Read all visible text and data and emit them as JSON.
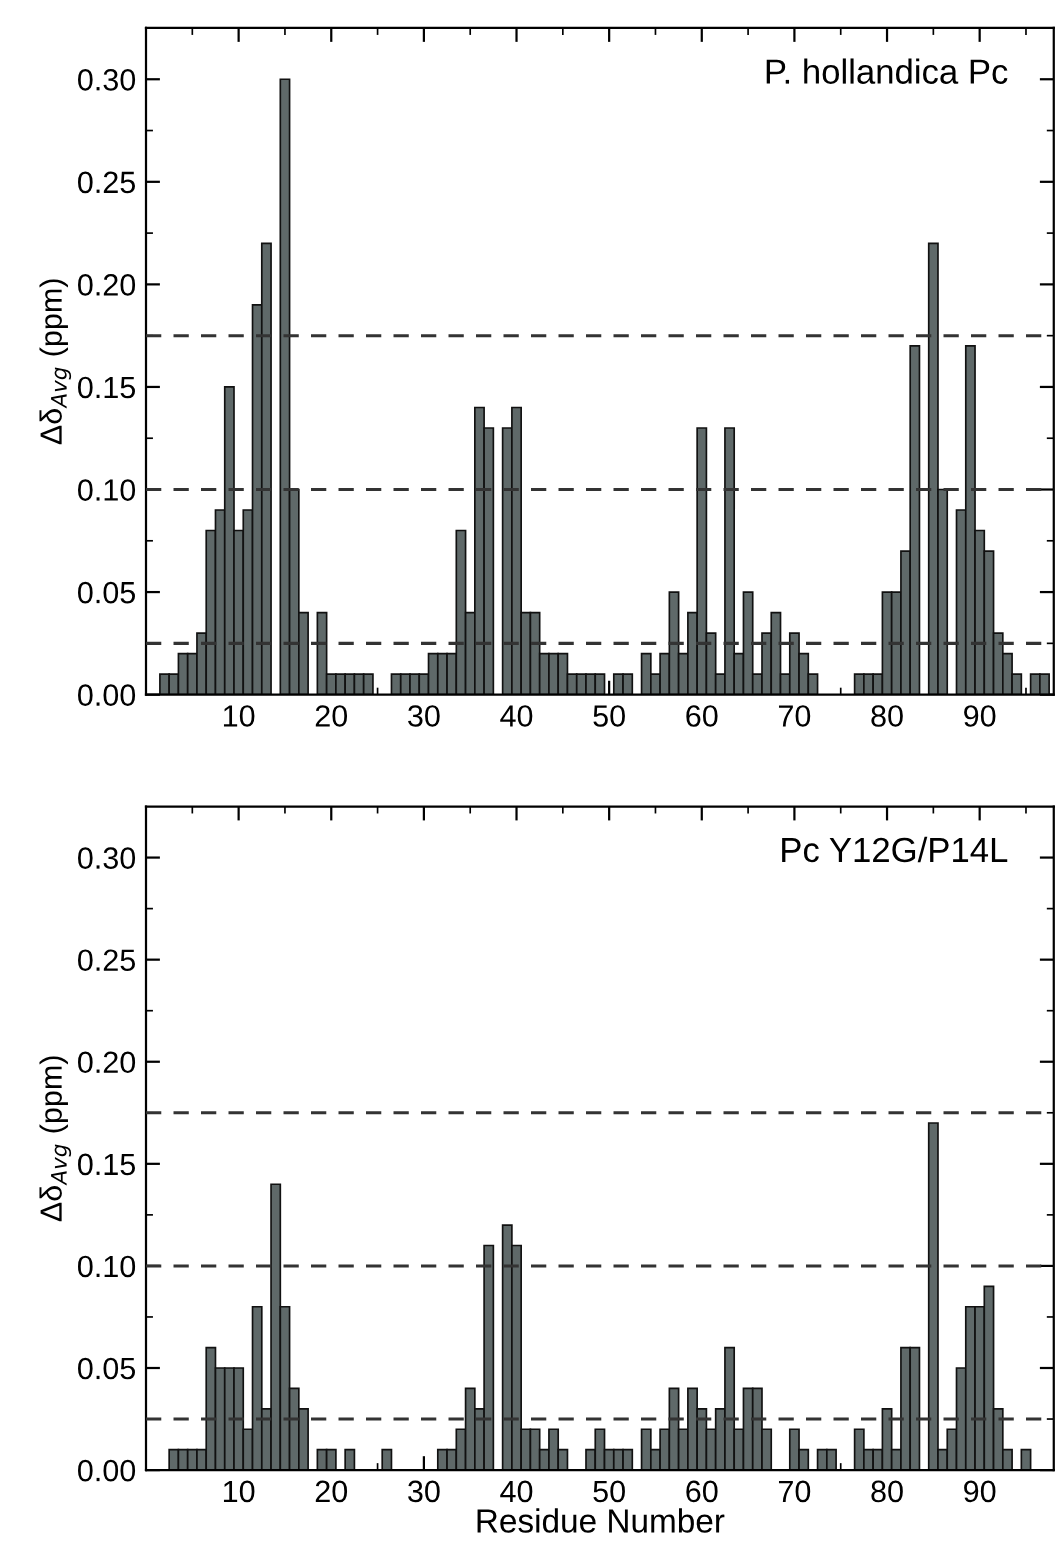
{
  "chart_data": [
    {
      "type": "bar",
      "ylabel": "Δδ$_{Avg}$ (ppm)",
      "annotations": [
        "P. hollandica Pc"
      ],
      "color": "#5f6969",
      "x": [
        2,
        3,
        4,
        5,
        6,
        7,
        8,
        9,
        10,
        11,
        12,
        13,
        14,
        15,
        16,
        17,
        18,
        19,
        20,
        21,
        22,
        23,
        24,
        25,
        26,
        27,
        28,
        29,
        30,
        31,
        32,
        33,
        34,
        35,
        36,
        37,
        38,
        39,
        40,
        41,
        42,
        43,
        44,
        45,
        46,
        47,
        48,
        49,
        50,
        51,
        52,
        53,
        54,
        55,
        56,
        57,
        58,
        59,
        60,
        61,
        62,
        63,
        64,
        65,
        66,
        67,
        68,
        69,
        70,
        71,
        72,
        73,
        74,
        75,
        76,
        77,
        78,
        79,
        80,
        81,
        82,
        83,
        84,
        85,
        86,
        87,
        88,
        89,
        90,
        91,
        92,
        93,
        94,
        95,
        96,
        97
      ],
      "values": [
        0.01,
        0.01,
        0.02,
        0.02,
        0.03,
        0.08,
        0.09,
        0.15,
        0.08,
        0.09,
        0.19,
        0.22,
        null,
        0.3,
        0.1,
        0.04,
        null,
        0.04,
        0.01,
        0.01,
        0.01,
        0.01,
        0.01,
        null,
        null,
        0.01,
        0.01,
        0.01,
        0.01,
        0.02,
        0.02,
        0.02,
        0.08,
        0.04,
        0.14,
        0.13,
        null,
        0.13,
        0.14,
        0.04,
        0.04,
        0.02,
        0.02,
        0.02,
        0.01,
        0.01,
        0.01,
        0.01,
        null,
        0.01,
        0.01,
        null,
        0.02,
        0.01,
        0.02,
        0.05,
        0.02,
        0.04,
        0.13,
        0.03,
        0.01,
        0.13,
        0.02,
        0.05,
        0.01,
        0.03,
        0.04,
        0.01,
        0.03,
        0.02,
        0.01,
        null,
        null,
        null,
        null,
        0.01,
        0.01,
        0.01,
        0.05,
        0.05,
        0.07,
        0.17,
        null,
        0.22,
        0.1,
        null,
        0.09,
        0.17,
        0.08,
        0.07,
        0.03,
        0.02,
        0.01,
        null,
        0.01,
        0.01
      ],
      "xlim": [
        0,
        98
      ],
      "xticks": [
        {
          "value": 5,
          "label": null
        },
        10,
        {
          "value": 15,
          "label": null
        },
        20,
        {
          "value": 25,
          "label": null
        },
        30,
        {
          "value": 35,
          "label": null
        },
        40,
        {
          "value": 45,
          "label": null
        },
        50,
        {
          "value": 55,
          "label": null
        },
        60,
        {
          "value": 65,
          "label": null
        },
        70,
        {
          "value": 75,
          "label": null
        },
        80,
        {
          "value": 85,
          "label": null
        },
        90,
        {
          "value": 95,
          "label": null
        }
      ],
      "ylim": [
        0,
        0.325
      ],
      "yticks": [
        {
          "value": 0,
          "label": "0.00"
        },
        {
          "value": 0.025,
          "label": null
        },
        {
          "value": 0.05,
          "label": "0.05"
        },
        {
          "value": 0.075,
          "label": null
        },
        {
          "value": 0.1,
          "label": "0.10"
        },
        {
          "value": 0.125,
          "label": null
        },
        {
          "value": 0.15,
          "label": "0.15"
        },
        {
          "value": 0.175,
          "label": null
        },
        {
          "value": 0.2,
          "label": "0.20"
        },
        {
          "value": 0.225,
          "label": null
        },
        {
          "value": 0.25,
          "label": "0.25"
        },
        {
          "value": 0.275,
          "label": null
        },
        {
          "value": 0.3,
          "label": "0.30"
        }
      ],
      "ref_lines": [
        {
          "axis": "y",
          "value": 0.025,
          "line_style": "dashed",
          "color": "#333333"
        },
        {
          "axis": "y",
          "value": 0.1,
          "line_style": "dashed",
          "color": "#333333"
        },
        {
          "axis": "y",
          "value": 0.175,
          "line_style": "dashed",
          "color": "#333333"
        }
      ],
      "grid": false,
      "legend": false
    },
    {
      "type": "bar",
      "ylabel": "Δδ$_{Avg}$ (ppm)",
      "xlabel": "Residue Number",
      "annotations": [
        "Pc Y12G/P14L"
      ],
      "color": "#5f6969",
      "x": [
        3,
        4,
        5,
        6,
        7,
        8,
        9,
        10,
        11,
        12,
        13,
        14,
        15,
        16,
        17,
        18,
        19,
        20,
        21,
        22,
        23,
        24,
        25,
        26,
        27,
        28,
        29,
        30,
        31,
        32,
        33,
        34,
        35,
        36,
        37,
        38,
        39,
        40,
        41,
        42,
        43,
        44,
        45,
        46,
        47,
        48,
        49,
        50,
        51,
        52,
        53,
        54,
        55,
        56,
        57,
        58,
        59,
        60,
        61,
        62,
        63,
        64,
        65,
        66,
        67,
        68,
        69,
        70,
        71,
        72,
        73,
        74,
        75,
        76,
        77,
        78,
        79,
        80,
        81,
        82,
        83,
        84,
        85,
        86,
        87,
        88,
        89,
        90,
        91,
        92,
        93,
        94,
        95
      ],
      "values": [
        0.01,
        0.01,
        0.01,
        0.01,
        0.06,
        0.05,
        0.05,
        0.05,
        0.02,
        0.08,
        0.03,
        0.14,
        0.08,
        0.04,
        0.03,
        null,
        0.01,
        0.01,
        null,
        0.01,
        null,
        null,
        null,
        0.01,
        null,
        null,
        null,
        null,
        null,
        0.01,
        0.01,
        0.02,
        0.04,
        0.03,
        0.11,
        null,
        0.12,
        0.11,
        0.02,
        0.02,
        0.01,
        0.02,
        0.01,
        null,
        null,
        0.01,
        0.02,
        0.01,
        0.01,
        0.01,
        null,
        0.02,
        0.01,
        0.02,
        0.04,
        0.02,
        0.04,
        0.03,
        0.02,
        0.03,
        0.06,
        0.02,
        0.04,
        0.04,
        0.02,
        null,
        null,
        0.02,
        0.01,
        null,
        0.01,
        0.01,
        null,
        null,
        0.02,
        0.01,
        0.01,
        0.03,
        0.01,
        0.06,
        0.06,
        null,
        0.17,
        0.01,
        0.02,
        0.05,
        0.08,
        0.08,
        0.09,
        0.03,
        0.01,
        null,
        0.01
      ],
      "xlim": [
        0,
        98
      ],
      "xticks": [
        {
          "value": 5,
          "label": null
        },
        10,
        {
          "value": 15,
          "label": null
        },
        20,
        {
          "value": 25,
          "label": null
        },
        30,
        {
          "value": 35,
          "label": null
        },
        40,
        {
          "value": 45,
          "label": null
        },
        50,
        {
          "value": 55,
          "label": null
        },
        60,
        {
          "value": 65,
          "label": null
        },
        70,
        {
          "value": 75,
          "label": null
        },
        80,
        {
          "value": 85,
          "label": null
        },
        90,
        {
          "value": 95,
          "label": null
        }
      ],
      "ylim": [
        0,
        0.325
      ],
      "yticks": [
        {
          "value": 0,
          "label": "0.00"
        },
        {
          "value": 0.025,
          "label": null
        },
        {
          "value": 0.05,
          "label": "0.05"
        },
        {
          "value": 0.075,
          "label": null
        },
        {
          "value": 0.1,
          "label": "0.10"
        },
        {
          "value": 0.125,
          "label": null
        },
        {
          "value": 0.15,
          "label": "0.15"
        },
        {
          "value": 0.175,
          "label": null
        },
        {
          "value": 0.2,
          "label": "0.20"
        },
        {
          "value": 0.225,
          "label": null
        },
        {
          "value": 0.25,
          "label": "0.25"
        },
        {
          "value": 0.275,
          "label": null
        },
        {
          "value": 0.3,
          "label": "0.30"
        }
      ],
      "ref_lines": [
        {
          "axis": "y",
          "value": 0.025,
          "line_style": "dashed",
          "color": "#333333"
        },
        {
          "axis": "y",
          "value": 0.1,
          "line_style": "dashed",
          "color": "#333333"
        },
        {
          "axis": "y",
          "value": 0.175,
          "line_style": "dashed",
          "color": "#333333"
        }
      ],
      "grid": false,
      "legend": false
    }
  ]
}
